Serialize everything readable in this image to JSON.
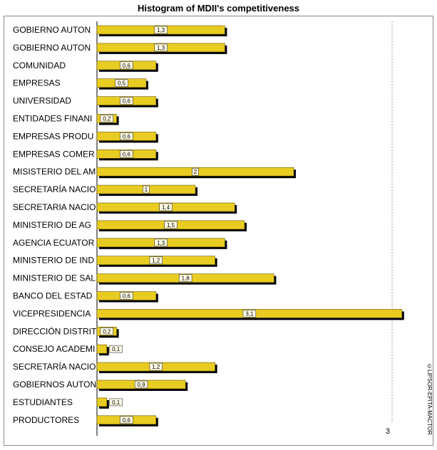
{
  "chart_data": {
    "type": "bar",
    "orientation": "horizontal",
    "title": "Histogram of MDII's competitiveness",
    "categories": [
      "GOBIERNO AUTON",
      "GOBIERNO AUTON",
      "COMUNIDAD",
      "EMPRESAS",
      "UNIVERSIDAD",
      "ENTIDADES FINANI",
      "EMPRESAS PRODU",
      "EMPRESAS COMER",
      "MISISTERIO  DEL AM",
      "SECRETARÍA NACIO",
      "SECRETARIA NACIO",
      "MINISTERIO  DE AG",
      "AGENCIA ECUATOR",
      "MINISTERIO  DE IND",
      "MINISTERIO  DE SAL",
      "BANCO  DEL ESTAD",
      "VICEPRESIDENCIA",
      "DIRECCIÓN DISTRIT",
      "CONSEJO ACADEMI",
      "SECRETARÍA NACIO",
      "GOBIERNOS AUTON",
      "ESTUDIANTES",
      "PRODUCTORES"
    ],
    "values": [
      1.3,
      1.3,
      0.6,
      0.5,
      0.6,
      0.2,
      0.6,
      0.6,
      2,
      1,
      1.4,
      1.5,
      1.3,
      1.2,
      1.8,
      0.6,
      3.1,
      0.2,
      0.1,
      1.2,
      0.9,
      0.1,
      0.6
    ],
    "data_labels": [
      "1,3",
      "1,3",
      "0,6",
      "0,5",
      "0,6",
      "0,2",
      "0,6",
      "0,6",
      "2",
      "1",
      "1,4",
      "1,5",
      "1,3",
      "1,2",
      "1,8",
      "0,6",
      "3,1",
      "0,2",
      "0,1",
      "1,2",
      "0,9",
      "0,1",
      "0,6"
    ],
    "xlim": [
      0,
      3.1
    ],
    "x_ticks": [
      {
        "value": 3,
        "label": "3"
      }
    ],
    "grid": "dashed vertical line at 3",
    "legend": "none",
    "bar_color": "#e8cc22",
    "bar_shadow_color": "#000000"
  },
  "footer": {
    "copyright": "©LIPSOR-EPITA-MACTOR"
  }
}
